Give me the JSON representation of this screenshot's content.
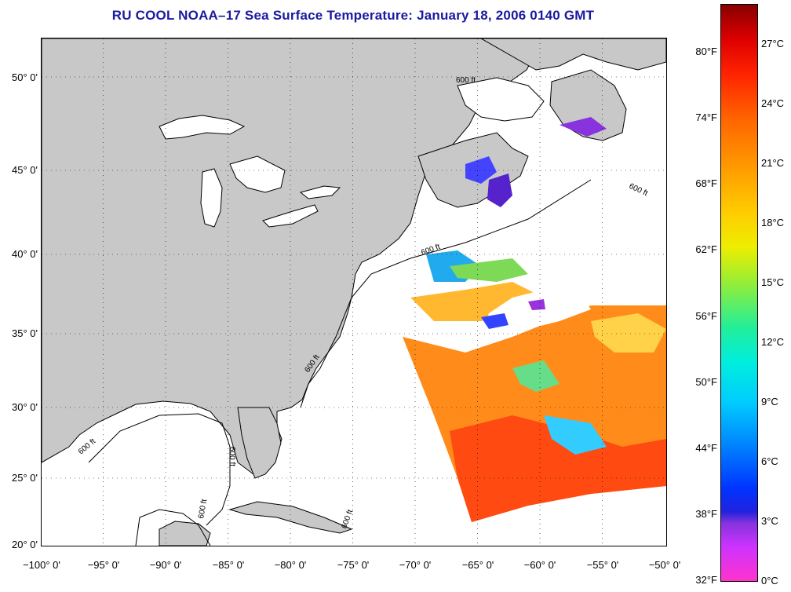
{
  "title": "RU COOL  NOAA–17  Sea Surface Temperature:  January 18, 2006 0140 GMT",
  "map": {
    "lat_labels": [
      "50° 0'",
      "45° 0'",
      "40° 0'",
      "35° 0'",
      "30° 0'",
      "25° 0'",
      "20° 0'"
    ],
    "lon_labels": [
      "−100° 0'",
      "−95° 0'",
      "−90° 0'",
      "−85° 0'",
      "−80° 0'",
      "−75° 0'",
      "−70° 0'",
      "−65° 0'",
      "−60° 0'",
      "−55° 0'",
      "−50° 0'"
    ],
    "contour_labels": [
      "600 ft",
      "600 ft",
      "600 ft",
      "600 ft",
      "600 ft",
      "600 ft",
      "600 ft",
      "600 ft"
    ],
    "colors": {
      "land": "#c8c8c8",
      "ocean_nodata": "#ffffff",
      "grid": "#000000",
      "title": "#1a1aa0"
    }
  },
  "colorbar": {
    "fahrenheit_labels": [
      "80°F",
      "74°F",
      "68°F",
      "62°F",
      "56°F",
      "50°F",
      "44°F",
      "38°F",
      "32°F"
    ],
    "celsius_labels": [
      "27°C",
      "24°C",
      "21°C",
      "18°C",
      "15°C",
      "12°C",
      "9°C",
      "6°C",
      "3°C",
      "0°C"
    ],
    "range_c": [
      0,
      29
    ],
    "colors": [
      "#ff33cc",
      "#8833dd",
      "#0033ff",
      "#00ccff",
      "#22ee99",
      "#eeee00",
      "#ff9900",
      "#ff2200",
      "#880000"
    ]
  }
}
